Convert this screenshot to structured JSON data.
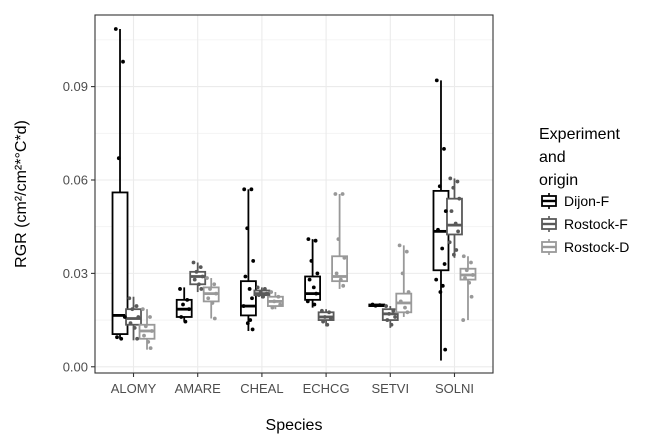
{
  "chart_data": {
    "type": "boxplot",
    "xlabel": "Species",
    "ylabel": "RGR (cm²/cm²*°C*d)",
    "ylim": [
      -0.002,
      0.113
    ],
    "yticks": [
      0.0,
      0.03,
      0.06,
      0.09
    ],
    "ytick_labels": [
      "0.00",
      "0.03",
      "0.06",
      "0.09"
    ],
    "grid": true,
    "categories": [
      "ALOMY",
      "AMARE",
      "CHEAL",
      "ECHCG",
      "SETVI",
      "SOLNI"
    ],
    "legend": {
      "title_lines": [
        "Experiment",
        "and",
        "origin"
      ],
      "position": "right",
      "entries": [
        "Dijon-F",
        "Rostock-F",
        "Rostock-D"
      ]
    },
    "series": [
      {
        "name": "Dijon-F",
        "color": "#000000",
        "boxes": [
          {
            "category": "ALOMY",
            "min": 0.009,
            "q1": 0.0105,
            "median": 0.0165,
            "q3": 0.056,
            "max": 0.1085,
            "points": [
              0.1085,
              0.098,
              0.067,
              0.016,
              0.0095,
              0.009
            ]
          },
          {
            "category": "AMARE",
            "min": 0.0145,
            "q1": 0.016,
            "median": 0.0185,
            "q3": 0.0215,
            "max": 0.0255,
            "points": [
              0.025,
              0.0215,
              0.02,
              0.0185,
              0.016,
              0.0145
            ]
          },
          {
            "category": "CHEAL",
            "min": 0.0115,
            "q1": 0.0165,
            "median": 0.0195,
            "q3": 0.0275,
            "max": 0.057,
            "points": [
              0.057,
              0.057,
              0.0445,
              0.034,
              0.029,
              0.025,
              0.022,
              0.0195,
              0.015,
              0.014,
              0.012
            ]
          },
          {
            "category": "ECHCG",
            "min": 0.019,
            "q1": 0.0215,
            "median": 0.0235,
            "q3": 0.029,
            "max": 0.041,
            "points": [
              0.041,
              0.0405,
              0.034,
              0.03,
              0.028,
              0.0255,
              0.0235,
              0.021,
              0.02
            ]
          },
          {
            "category": "SETVI",
            "min": 0.0195,
            "q1": 0.0195,
            "median": 0.0197,
            "q3": 0.02,
            "max": 0.0202,
            "points": [
              0.02,
              0.0198,
              0.0196
            ]
          },
          {
            "category": "SOLNI",
            "min": 0.002,
            "q1": 0.031,
            "median": 0.0435,
            "q3": 0.0565,
            "max": 0.092,
            "points": [
              0.092,
              0.07,
              0.058,
              0.05,
              0.044,
              0.038,
              0.033,
              0.028,
              0.026,
              0.024,
              0.0055
            ]
          }
        ]
      },
      {
        "name": "Rostock-F",
        "color": "#595959",
        "boxes": [
          {
            "category": "ALOMY",
            "min": 0.0085,
            "q1": 0.0135,
            "median": 0.0155,
            "q3": 0.0185,
            "max": 0.0225,
            "points": [
              0.022,
              0.0195,
              0.0185,
              0.016,
              0.014,
              0.0125,
              0.009
            ]
          },
          {
            "category": "AMARE",
            "min": 0.024,
            "q1": 0.0265,
            "median": 0.029,
            "q3": 0.0305,
            "max": 0.0335,
            "points": [
              0.0335,
              0.032,
              0.0305,
              0.029,
              0.028,
              0.0265,
              0.025
            ]
          },
          {
            "category": "CHEAL",
            "min": 0.022,
            "q1": 0.023,
            "median": 0.0235,
            "q3": 0.0245,
            "max": 0.0255,
            "points": [
              0.0255,
              0.025,
              0.024,
              0.0235,
              0.023,
              0.0225
            ]
          },
          {
            "category": "ECHCG",
            "min": 0.013,
            "q1": 0.015,
            "median": 0.016,
            "q3": 0.0175,
            "max": 0.0185,
            "points": [
              0.018,
              0.0175,
              0.016,
              0.0155,
              0.0145,
              0.0135
            ]
          },
          {
            "category": "SETVI",
            "min": 0.0125,
            "q1": 0.015,
            "median": 0.017,
            "q3": 0.0185,
            "max": 0.0195,
            "points": [
              0.0195,
              0.018,
              0.017,
              0.016,
              0.015,
              0.0135
            ]
          },
          {
            "category": "SOLNI",
            "min": 0.035,
            "q1": 0.0425,
            "median": 0.0455,
            "q3": 0.054,
            "max": 0.0605,
            "points": [
              0.0605,
              0.0595,
              0.0575,
              0.054,
              0.05,
              0.046,
              0.0435,
              0.04,
              0.0375,
              0.036
            ]
          }
        ]
      },
      {
        "name": "Rostock-D",
        "color": "#999999",
        "boxes": [
          {
            "category": "ALOMY",
            "min": 0.0055,
            "q1": 0.009,
            "median": 0.0115,
            "q3": 0.0135,
            "max": 0.0185,
            "points": [
              0.0185,
              0.016,
              0.013,
              0.0115,
              0.01,
              0.008,
              0.006
            ]
          },
          {
            "category": "AMARE",
            "min": 0.0155,
            "q1": 0.021,
            "median": 0.0235,
            "q3": 0.0255,
            "max": 0.0285,
            "points": [
              0.0285,
              0.0265,
              0.025,
              0.0235,
              0.022,
              0.0205,
              0.0155
            ]
          },
          {
            "category": "CHEAL",
            "min": 0.0185,
            "q1": 0.0195,
            "median": 0.021,
            "q3": 0.0225,
            "max": 0.024,
            "points": [
              0.024,
              0.0225,
              0.021,
              0.02,
              0.019
            ]
          },
          {
            "category": "ECHCG",
            "min": 0.025,
            "q1": 0.0275,
            "median": 0.029,
            "q3": 0.0355,
            "max": 0.0555,
            "points": [
              0.0555,
              0.0555,
              0.041,
              0.035,
              0.03,
              0.028,
              0.026
            ]
          },
          {
            "category": "SETVI",
            "min": 0.016,
            "q1": 0.0175,
            "median": 0.0205,
            "q3": 0.0235,
            "max": 0.039,
            "points": [
              0.039,
              0.037,
              0.03,
              0.024,
              0.021,
              0.019,
              0.0175
            ]
          },
          {
            "category": "SOLNI",
            "min": 0.015,
            "q1": 0.028,
            "median": 0.0295,
            "q3": 0.0315,
            "max": 0.0355,
            "points": [
              0.0355,
              0.0335,
              0.031,
              0.0295,
              0.0285,
              0.027,
              0.0225,
              0.015
            ]
          }
        ]
      }
    ]
  }
}
